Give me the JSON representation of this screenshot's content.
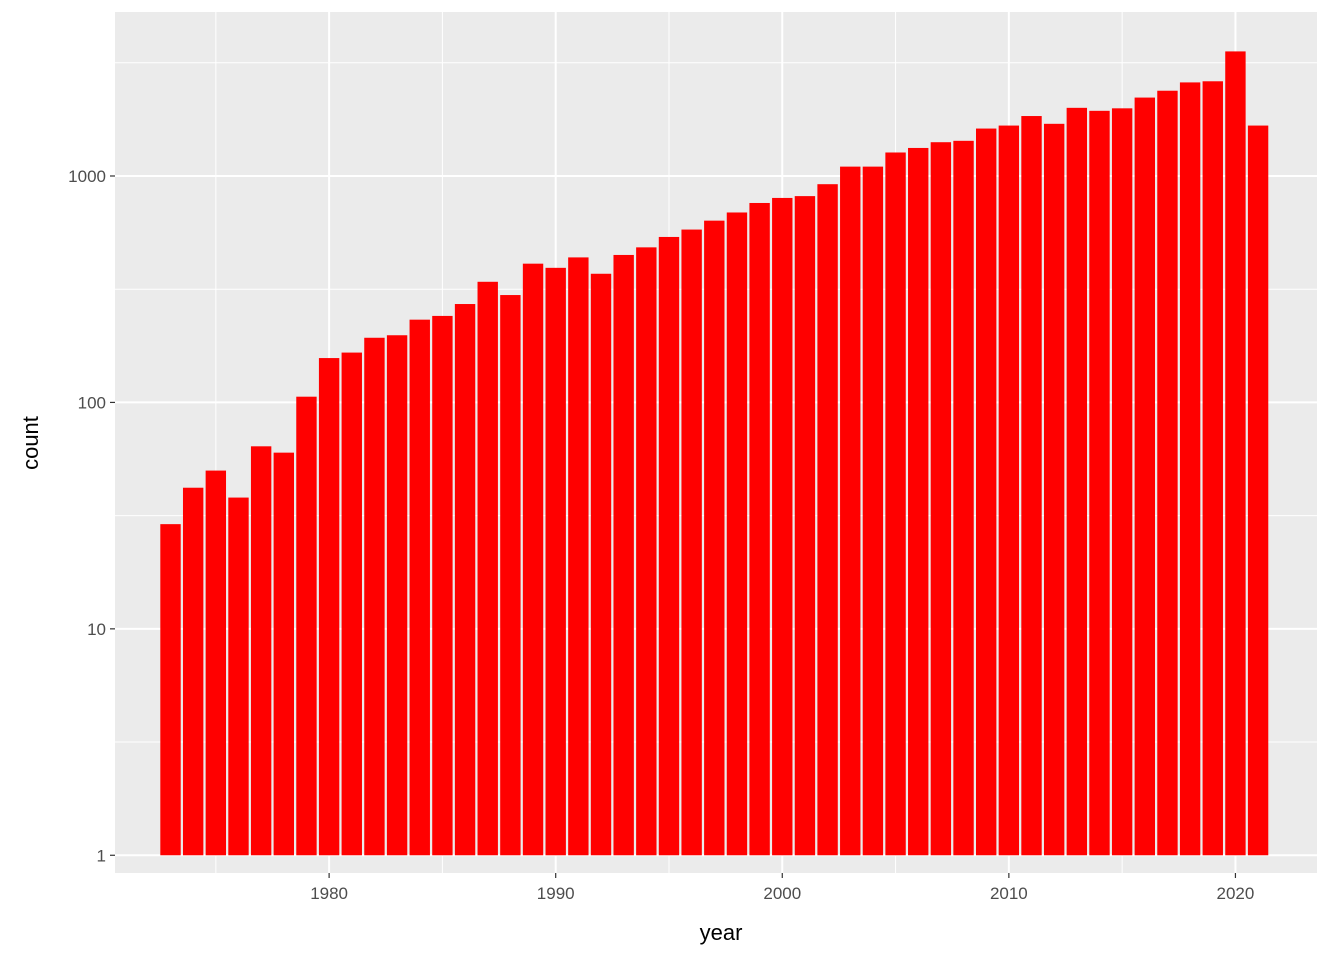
{
  "chart_data": {
    "type": "bar",
    "title": "",
    "xlabel": "year",
    "ylabel": "count",
    "yscale": "log10",
    "bar_color": "#ff0000",
    "panel_color": "#ebebeb",
    "grid_color": "#ffffff",
    "xlim": [
      1970.5,
      1923.5
    ],
    "ylim": [
      0.73,
      5200
    ],
    "x_ticks": [
      1980,
      1990,
      2000,
      2010,
      2020
    ],
    "x_tick_labels": [
      "1980",
      "1990",
      "2000",
      "2010",
      "2020"
    ],
    "y_ticks": [
      1,
      10,
      100,
      1000
    ],
    "y_tick_labels": [
      "1",
      "10",
      "100",
      "1000"
    ],
    "categories": [
      1973,
      1974,
      1975,
      1976,
      1977,
      1978,
      1979,
      1980,
      1981,
      1982,
      1983,
      1984,
      1985,
      1986,
      1987,
      1988,
      1989,
      1990,
      1991,
      1992,
      1993,
      1994,
      1995,
      1996,
      1997,
      1998,
      1999,
      2000,
      2001,
      2002,
      2003,
      2004,
      2005,
      2006,
      2007,
      2008,
      2009,
      2010,
      2011,
      2012,
      2013,
      2014,
      2015,
      2016,
      2017,
      2018,
      2019,
      2020,
      2021
    ],
    "values": [
      29,
      42,
      50,
      38,
      64,
      60,
      106,
      157,
      166,
      193,
      198,
      232,
      241,
      272,
      341,
      298,
      410,
      393,
      437,
      370,
      448,
      484,
      538,
      580,
      635,
      690,
      760,
      800,
      815,
      920,
      1100,
      1100,
      1270,
      1330,
      1410,
      1430,
      1620,
      1670,
      1840,
      1700,
      2000,
      1940,
      1990,
      2220,
      2380,
      2590,
      2620,
      3550,
      1670
    ]
  }
}
